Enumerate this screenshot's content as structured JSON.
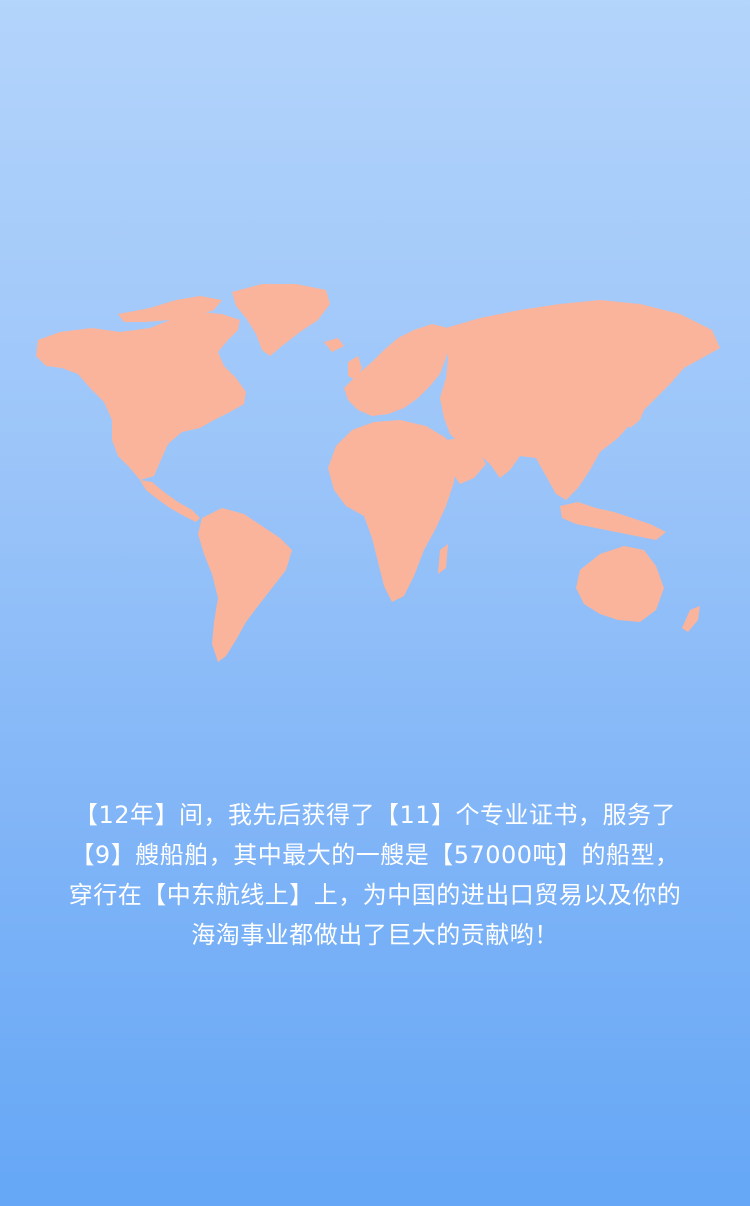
{
  "story": {
    "lines": [
      "【12年】间，我先后获得了【11】个专业证书，服务了",
      "【9】艘船舶，其中最大的一艘是【57000吨】的船型，",
      "穿行在【中东航线上】上，为中国的进出口贸易以及你的",
      "海淘事业都做出了巨大的贡献哟！"
    ]
  },
  "colors": {
    "background_top": "#b3d4fb",
    "background_bottom": "#65a7f6",
    "land": "#fbb49c",
    "text": "#ffffff"
  }
}
